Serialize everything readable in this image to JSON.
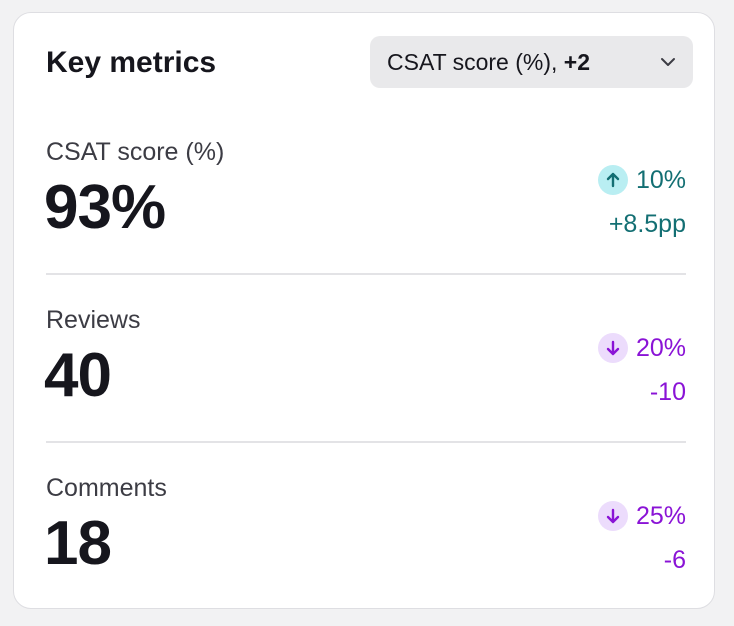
{
  "card": {
    "title": "Key metrics",
    "selector": {
      "label": "CSAT score (%),",
      "extra": "+2",
      "icon": "chevron-down-icon"
    }
  },
  "metrics": [
    {
      "label": "CSAT score (%)",
      "value": "93%",
      "direction": "up",
      "delta_pct": "10%",
      "delta_abs": "+8.5pp",
      "icon": "arrow-up-icon"
    },
    {
      "label": "Reviews",
      "value": "40",
      "direction": "down",
      "delta_pct": "20%",
      "delta_abs": "-10",
      "icon": "arrow-down-icon"
    },
    {
      "label": "Comments",
      "value": "18",
      "direction": "down",
      "delta_pct": "25%",
      "delta_abs": "-6",
      "icon": "arrow-down-icon"
    }
  ],
  "colors": {
    "up_text": "#136f73",
    "up_badge": "#b9eef2",
    "down_text": "#8a13d6",
    "down_badge": "#ecdcfc"
  }
}
